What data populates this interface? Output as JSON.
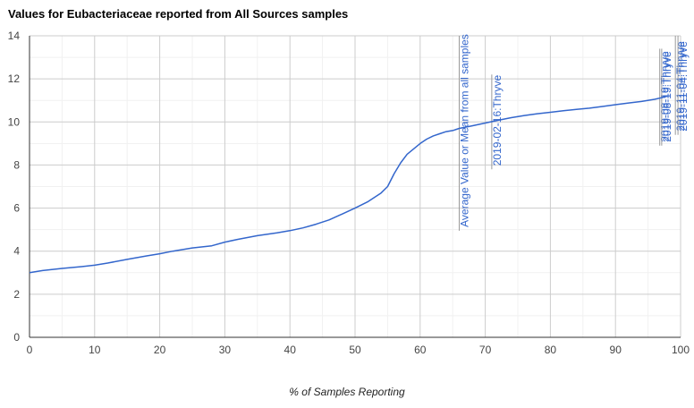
{
  "chart_data": {
    "type": "line",
    "title": "Values for Eubacteriaceae reported from All Sources samples",
    "xlabel": "% of Samples Reporting",
    "ylabel": "",
    "xlim": [
      0,
      100
    ],
    "ylim": [
      0,
      14
    ],
    "x_ticks": [
      "0",
      "10",
      "20",
      "30",
      "40",
      "50",
      "60",
      "70",
      "80",
      "90",
      "100"
    ],
    "y_ticks": [
      "0",
      "2",
      "4",
      "6",
      "8",
      "10",
      "12",
      "14"
    ],
    "grid": true,
    "legend": "none",
    "line_color": "#3366cc",
    "series": [
      {
        "x": [
          0,
          2,
          5,
          8,
          10,
          12,
          15,
          18,
          20,
          22,
          25,
          28,
          30,
          32,
          35,
          38,
          40,
          42,
          44,
          46,
          48,
          50,
          52,
          54,
          55,
          56,
          57,
          58,
          59,
          60,
          61,
          62,
          63,
          64,
          65,
          66,
          68,
          70,
          72,
          74,
          76,
          78,
          80,
          82,
          84,
          86,
          88,
          90,
          92,
          94,
          96,
          97,
          98
        ],
        "y": [
          3.0,
          3.1,
          3.2,
          3.28,
          3.35,
          3.45,
          3.62,
          3.78,
          3.88,
          4.0,
          4.15,
          4.25,
          4.42,
          4.55,
          4.72,
          4.85,
          4.95,
          5.08,
          5.25,
          5.45,
          5.72,
          6.0,
          6.3,
          6.7,
          7.0,
          7.6,
          8.1,
          8.5,
          8.75,
          9.0,
          9.2,
          9.35,
          9.45,
          9.55,
          9.6,
          9.7,
          9.82,
          9.95,
          10.08,
          10.2,
          10.3,
          10.38,
          10.45,
          10.52,
          10.58,
          10.64,
          10.72,
          10.8,
          10.88,
          10.95,
          11.05,
          11.12,
          11.2
        ]
      }
    ],
    "annotations": [
      {
        "x": 66,
        "label": "Average Value or Mean from all samples",
        "line_top": 14,
        "line_bottom": 4.95
      },
      {
        "x": 71,
        "label": "2019-02-16:Thryve",
        "line_top": 12.2,
        "line_bottom": 7.8
      },
      {
        "x": 96.8,
        "label": "2019-08-19:Thryve",
        "line_top": 13.4,
        "line_bottom": 8.9
      },
      {
        "x": 97.1,
        "label": "2019-08-19:Thryve",
        "line_top": 13.4,
        "line_bottom": 8.9
      },
      {
        "x": 99.2,
        "label": "2019-11-04:Thryve",
        "line_top": 14,
        "line_bottom": 9.4
      },
      {
        "x": 99.6,
        "label": "2019-11-04:Thryve",
        "line_top": 14,
        "line_bottom": 9.4
      }
    ]
  }
}
